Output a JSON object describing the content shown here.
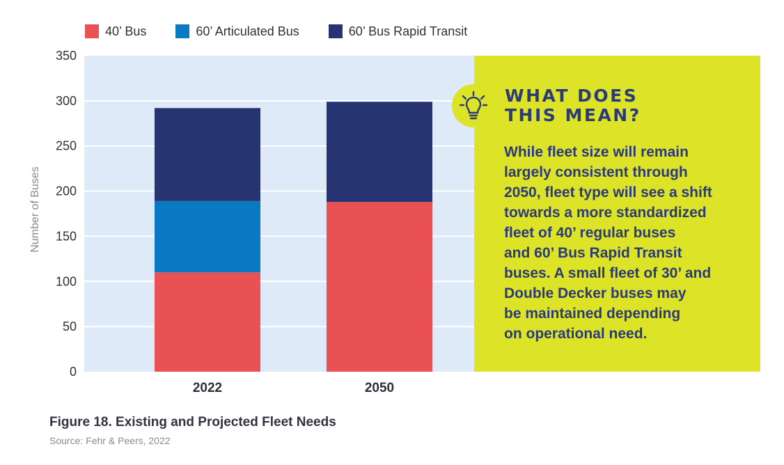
{
  "chart_data": {
    "type": "bar",
    "stacked": true,
    "categories": [
      "2022",
      "2050"
    ],
    "series": [
      {
        "name": "40’ Bus",
        "color": "#ea5155",
        "values": [
          110,
          188
        ]
      },
      {
        "name": "60’ Articulated Bus",
        "color": "#0879c2",
        "values": [
          79,
          0
        ]
      },
      {
        "name": "60’ Bus Rapid Transit",
        "color": "#263572",
        "values": [
          103,
          111
        ]
      }
    ],
    "ylabel": "Number of Buses",
    "xlabel": "",
    "ylim": [
      0,
      350
    ],
    "yticks": [
      "0",
      "50",
      "100",
      "150",
      "200",
      "250",
      "300",
      "350"
    ],
    "grid": true,
    "legend": "top-left"
  },
  "callout": {
    "title_lines": [
      "WHAT DOES",
      "THIS MEAN?"
    ],
    "body_lines": [
      "While fleet size will remain",
      "largely consistent through",
      "2050, fleet type will see a shift",
      "towards a more standardized",
      "fleet of 40’ regular buses",
      "and 60’ Bus Rapid Transit",
      "buses. A small fleet of 30’ and",
      "Double Decker buses may",
      "be maintained depending",
      "on operational need."
    ],
    "icon": "lightbulb-icon"
  },
  "caption": "Figure 18. Existing and Projected Fleet Needs",
  "source": "Source: Fehr & Peers, 2022",
  "colors": {
    "plot_bg": "#dfeaf8",
    "callout_bg": "#dde327",
    "callout_text": "#2b3a78"
  }
}
